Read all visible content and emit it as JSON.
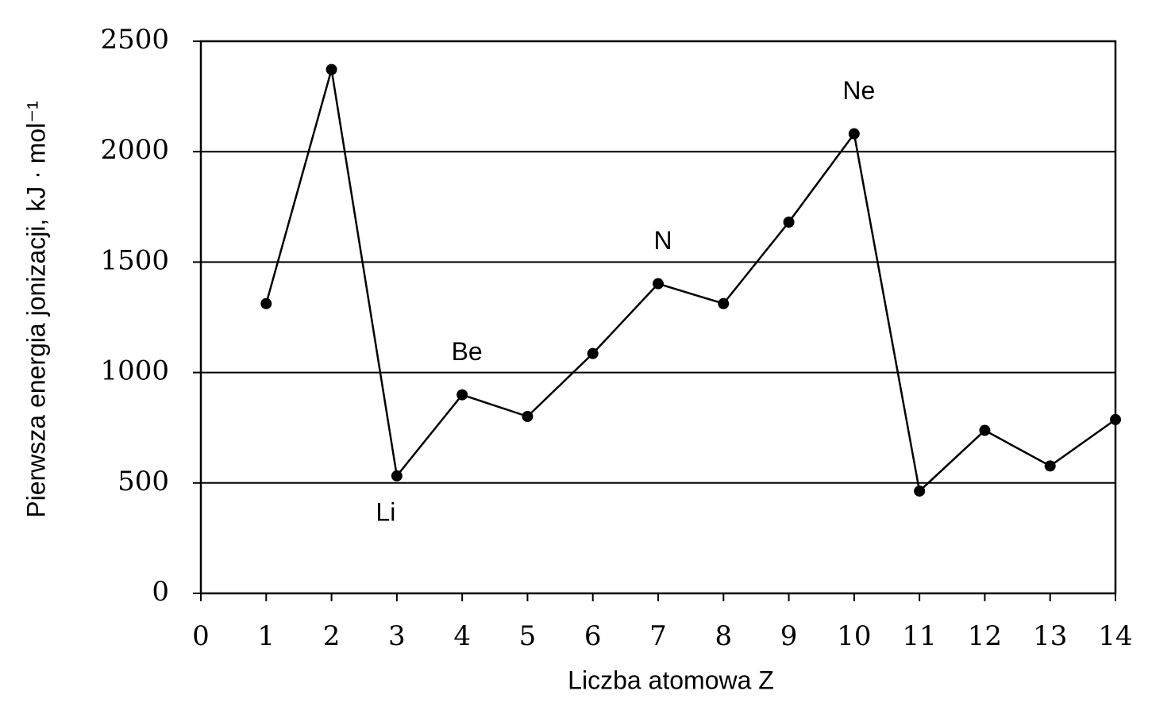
{
  "chart_data": {
    "type": "line",
    "xlabel": "Liczba atomowa Z",
    "ylabel": "Pierwsza energia jonizacji, kJ · mol⁻¹",
    "x": [
      1,
      2,
      3,
      4,
      5,
      6,
      7,
      8,
      9,
      10,
      11,
      12,
      13,
      14
    ],
    "series": [
      {
        "color": "#000000",
        "values": [
          1312,
          2372,
          532,
          899,
          801,
          1086,
          1402,
          1312,
          1681,
          2081,
          463,
          738,
          577,
          787
        ]
      }
    ],
    "xlim": [
      0,
      14
    ],
    "xticks": [
      0,
      1,
      2,
      3,
      4,
      5,
      6,
      7,
      8,
      9,
      10,
      11,
      12,
      13,
      14
    ],
    "ylim": [
      0,
      2500
    ],
    "yticks": [
      0,
      500,
      1000,
      1500,
      2000,
      2500
    ],
    "grid": true,
    "annotations": [
      {
        "text": "Li",
        "x": 3
      },
      {
        "text": "Be",
        "x": 4
      },
      {
        "text": "N",
        "x": 7
      },
      {
        "text": "Ne",
        "x": 10
      }
    ]
  }
}
